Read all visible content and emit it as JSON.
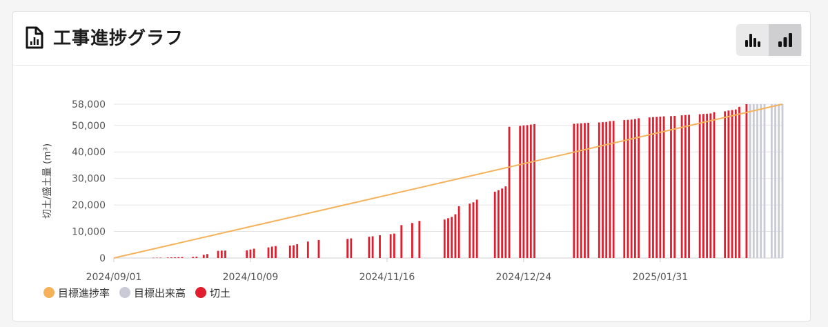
{
  "header": {
    "title": "工事進捗グラフ",
    "icon": "document-chart-icon",
    "toggles": [
      {
        "name": "grouped-bar-icon",
        "active": false
      },
      {
        "name": "bar-chart-icon",
        "active": true
      }
    ]
  },
  "colors": {
    "target_rate": "#f5b25a",
    "target_output": "#c9cad6",
    "cut": "#e01e2d"
  },
  "chart_data": {
    "type": "bar",
    "title": "",
    "xlabel": "",
    "ylabel": "切土/盛土量 (m³)",
    "ylim": [
      0,
      58000
    ],
    "yticks": [
      0,
      10000,
      20000,
      30000,
      40000,
      50000,
      58000
    ],
    "ytick_labels": [
      "0",
      "10,000",
      "20,000",
      "30,000",
      "40,000",
      "50,000",
      "58,000"
    ],
    "xrange": [
      "2024/09/01",
      "2025/03/06"
    ],
    "xtick_labels": [
      "2024/09/01",
      "2024/10/09",
      "2024/11/16",
      "2024/12/24",
      "2025/01/31"
    ],
    "grid": true,
    "legend_position": "bottom-left",
    "legend": [
      "目標進捗率",
      "目標出来高",
      "切土"
    ],
    "series": [
      {
        "name": "目標進捗率",
        "type": "line",
        "x": [
          "2024/09/01",
          "2025/03/06"
        ],
        "values": [
          0,
          58000
        ]
      },
      {
        "name": "切土",
        "type": "bar",
        "x": [
          "2024/09/12",
          "2024/09/13",
          "2024/09/14",
          "2024/09/16",
          "2024/09/17",
          "2024/09/18",
          "2024/09/19",
          "2024/09/20",
          "2024/09/23",
          "2024/09/24",
          "2024/09/26",
          "2024/09/27",
          "2024/09/30",
          "2024/10/01",
          "2024/10/02",
          "2024/10/08",
          "2024/10/09",
          "2024/10/10",
          "2024/10/14",
          "2024/10/15",
          "2024/10/16",
          "2024/10/20",
          "2024/10/21",
          "2024/10/22",
          "2024/10/25",
          "2024/10/28",
          "2024/11/05",
          "2024/11/06",
          "2024/11/11",
          "2024/11/12",
          "2024/11/14",
          "2024/11/17",
          "2024/11/18",
          "2024/11/20",
          "2024/11/23",
          "2024/11/25",
          "2024/12/02",
          "2024/12/03",
          "2024/12/04",
          "2024/12/05",
          "2024/12/06",
          "2024/12/09",
          "2024/12/10",
          "2024/12/11",
          "2024/12/16",
          "2024/12/17",
          "2024/12/18",
          "2024/12/19",
          "2024/12/20",
          "2024/12/23",
          "2024/12/24",
          "2024/12/25",
          "2024/12/26",
          "2024/12/27",
          "2025/01/07",
          "2025/01/08",
          "2025/01/09",
          "2025/01/10",
          "2025/01/11",
          "2025/01/14",
          "2025/01/15",
          "2025/01/16",
          "2025/01/17",
          "2025/01/18",
          "2025/01/21",
          "2025/01/22",
          "2025/01/23",
          "2025/01/24",
          "2025/01/25",
          "2025/01/28",
          "2025/01/29",
          "2025/01/30",
          "2025/01/31",
          "2025/02/01",
          "2025/02/03",
          "2025/02/04",
          "2025/02/06",
          "2025/02/07",
          "2025/02/08",
          "2025/02/11",
          "2025/02/12",
          "2025/02/13",
          "2025/02/14",
          "2025/02/15",
          "2025/02/18",
          "2025/02/19",
          "2025/02/20",
          "2025/02/21",
          "2025/02/22",
          "2025/02/24"
        ],
        "values": [
          100,
          120,
          140,
          200,
          240,
          260,
          300,
          350,
          400,
          500,
          1200,
          1500,
          2700,
          2800,
          2800,
          2900,
          3200,
          3500,
          4000,
          4300,
          4500,
          4700,
          4800,
          5200,
          6200,
          6800,
          7200,
          7400,
          8000,
          8200,
          8600,
          9000,
          9200,
          12400,
          13200,
          14000,
          14500,
          15000,
          15500,
          16500,
          19500,
          20500,
          21000,
          22000,
          25000,
          25600,
          26200,
          27000,
          49500,
          49800,
          50000,
          50100,
          50300,
          50500,
          50600,
          50700,
          50800,
          50900,
          51000,
          51100,
          51200,
          51300,
          51600,
          51700,
          52000,
          52100,
          52200,
          52400,
          52700,
          53000,
          53100,
          53200,
          53300,
          53400,
          53500,
          53600,
          53800,
          53900,
          54000,
          54200,
          54300,
          54400,
          54500,
          55000,
          55300,
          55600,
          55800,
          56000,
          57000,
          58000
        ]
      },
      {
        "name": "目標出来高",
        "type": "bar",
        "x": [
          "2025/02/25",
          "2025/02/26",
          "2025/02/27",
          "2025/02/28",
          "2025/03/01",
          "2025/03/03",
          "2025/03/04",
          "2025/03/05",
          "2025/03/06"
        ],
        "values": [
          58000,
          58000,
          58000,
          58000,
          58000,
          58000,
          58000,
          58000,
          58000
        ]
      }
    ]
  }
}
